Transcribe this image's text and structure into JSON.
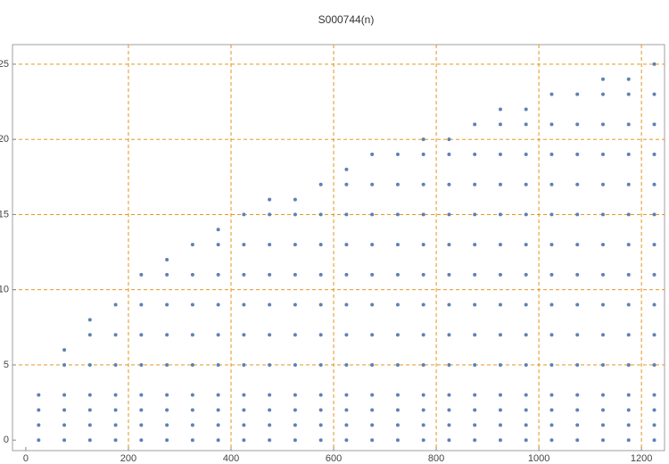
{
  "chart_data": {
    "type": "scatter",
    "title": "S000744(n)",
    "color": "#5e81b5",
    "x": [
      25,
      25,
      25,
      25,
      75,
      75,
      75,
      75,
      75,
      75,
      125,
      125,
      125,
      125,
      125,
      125,
      125,
      175,
      175,
      175,
      175,
      175,
      175,
      175,
      225,
      225,
      225,
      225,
      225,
      225,
      225,
      225,
      275,
      275,
      275,
      275,
      275,
      275,
      275,
      275,
      275,
      325,
      325,
      325,
      325,
      325,
      325,
      325,
      325,
      325,
      375,
      375,
      375,
      375,
      375,
      375,
      375,
      375,
      375,
      375,
      425,
      425,
      425,
      425,
      425,
      425,
      425,
      425,
      425,
      425,
      475,
      475,
      475,
      475,
      475,
      475,
      475,
      475,
      475,
      475,
      475,
      525,
      525,
      525,
      525,
      525,
      525,
      525,
      525,
      525,
      525,
      525,
      575,
      575,
      575,
      575,
      575,
      575,
      575,
      575,
      575,
      575,
      575,
      625,
      625,
      625,
      625,
      625,
      625,
      625,
      625,
      625,
      625,
      625,
      625,
      675,
      675,
      675,
      675,
      675,
      675,
      675,
      675,
      675,
      675,
      675,
      675,
      725,
      725,
      725,
      725,
      725,
      725,
      725,
      725,
      725,
      725,
      725,
      725,
      775,
      775,
      775,
      775,
      775,
      775,
      775,
      775,
      775,
      775,
      775,
      775,
      775,
      825,
      825,
      825,
      825,
      825,
      825,
      825,
      825,
      825,
      825,
      825,
      825,
      825,
      875,
      875,
      875,
      875,
      875,
      875,
      875,
      875,
      875,
      875,
      875,
      875,
      875,
      925,
      925,
      925,
      925,
      925,
      925,
      925,
      925,
      925,
      925,
      925,
      925,
      925,
      925,
      975,
      975,
      975,
      975,
      975,
      975,
      975,
      975,
      975,
      975,
      975,
      975,
      975,
      975,
      1025,
      1025,
      1025,
      1025,
      1025,
      1025,
      1025,
      1025,
      1025,
      1025,
      1025,
      1025,
      1025,
      1025,
      1075,
      1075,
      1075,
      1075,
      1075,
      1075,
      1075,
      1075,
      1075,
      1075,
      1075,
      1075,
      1075,
      1075,
      1125,
      1125,
      1125,
      1125,
      1125,
      1125,
      1125,
      1125,
      1125,
      1125,
      1125,
      1125,
      1125,
      1125,
      1125,
      1175,
      1175,
      1175,
      1175,
      1175,
      1175,
      1175,
      1175,
      1175,
      1175,
      1175,
      1175,
      1175,
      1175,
      1175,
      1225,
      1225,
      1225,
      1225,
      1225,
      1225,
      1225,
      1225,
      1225,
      1225,
      1225,
      1225,
      1225,
      1225,
      1225
    ],
    "values": [
      0,
      1,
      2,
      3,
      0,
      1,
      2,
      3,
      5,
      6,
      0,
      1,
      2,
      3,
      5,
      7,
      8,
      0,
      1,
      2,
      3,
      5,
      7,
      9,
      0,
      1,
      2,
      3,
      5,
      7,
      9,
      11,
      0,
      1,
      2,
      3,
      5,
      7,
      9,
      11,
      12,
      0,
      1,
      2,
      3,
      5,
      7,
      9,
      11,
      13,
      0,
      1,
      2,
      3,
      5,
      7,
      9,
      11,
      13,
      14,
      0,
      1,
      2,
      3,
      5,
      7,
      9,
      11,
      13,
      15,
      0,
      1,
      2,
      3,
      5,
      7,
      9,
      11,
      13,
      15,
      16,
      0,
      1,
      2,
      3,
      5,
      7,
      9,
      11,
      13,
      15,
      16,
      0,
      1,
      2,
      3,
      5,
      7,
      9,
      11,
      13,
      15,
      17,
      0,
      1,
      2,
      3,
      5,
      7,
      9,
      11,
      13,
      15,
      17,
      18,
      0,
      1,
      2,
      3,
      5,
      7,
      9,
      11,
      13,
      15,
      17,
      19,
      0,
      1,
      2,
      3,
      5,
      7,
      9,
      11,
      13,
      15,
      17,
      19,
      0,
      1,
      2,
      3,
      5,
      7,
      9,
      11,
      13,
      15,
      17,
      19,
      20,
      0,
      1,
      2,
      3,
      5,
      7,
      9,
      11,
      13,
      15,
      17,
      19,
      20,
      0,
      1,
      2,
      3,
      5,
      7,
      9,
      11,
      13,
      15,
      17,
      19,
      21,
      0,
      1,
      2,
      3,
      5,
      7,
      9,
      11,
      13,
      15,
      17,
      19,
      21,
      22,
      0,
      1,
      2,
      3,
      5,
      7,
      9,
      11,
      13,
      15,
      17,
      19,
      21,
      22,
      0,
      1,
      2,
      3,
      5,
      7,
      9,
      11,
      13,
      15,
      17,
      19,
      21,
      23,
      0,
      1,
      2,
      3,
      5,
      7,
      9,
      11,
      13,
      15,
      17,
      19,
      21,
      23,
      0,
      1,
      2,
      3,
      5,
      7,
      9,
      11,
      13,
      15,
      17,
      19,
      21,
      23,
      24,
      0,
      1,
      2,
      3,
      5,
      7,
      9,
      11,
      13,
      15,
      17,
      19,
      21,
      23,
      24,
      0,
      1,
      2,
      3,
      5,
      7,
      9,
      11,
      13,
      15,
      17,
      19,
      21,
      23,
      25
    ],
    "xlim": [
      -26,
      1245
    ],
    "ylim": [
      -0.7,
      26.3
    ],
    "xticks": [
      0,
      200,
      400,
      600,
      800,
      1000,
      1200
    ],
    "yticks": [
      0,
      5,
      10,
      15,
      20,
      25
    ],
    "grid": true,
    "grid_color": "#e08a00"
  }
}
